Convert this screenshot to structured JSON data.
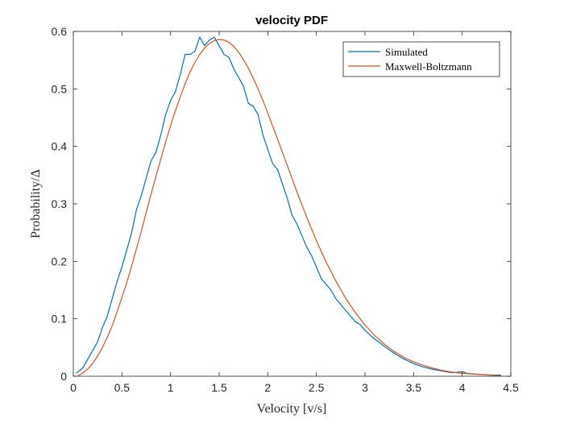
{
  "chart_data": {
    "type": "line",
    "title": "velocity PDF",
    "xlabel": "Velocity [v/s]",
    "ylabel": "Probability/Δ",
    "xlim": [
      0,
      4.5
    ],
    "ylim": [
      0,
      0.6
    ],
    "xticks": [
      0,
      0.5,
      1,
      1.5,
      2,
      2.5,
      3,
      3.5,
      4,
      4.5
    ],
    "xtick_labels": [
      "0",
      "0.5",
      "1",
      "1.5",
      "2",
      "2.5",
      "3",
      "3.5",
      "4",
      "4.5"
    ],
    "yticks": [
      0,
      0.1,
      0.2,
      0.3,
      0.4,
      0.5,
      0.6
    ],
    "ytick_labels": [
      "0",
      "0.1",
      "0.2",
      "0.3",
      "0.4",
      "0.5",
      "0.6"
    ],
    "grid": false,
    "legend_position": "top-right",
    "series": [
      {
        "name": "Simulated",
        "color": "#0072BD",
        "x": [
          0.03,
          0.1,
          0.15,
          0.2,
          0.25,
          0.3,
          0.35,
          0.4,
          0.45,
          0.5,
          0.55,
          0.6,
          0.65,
          0.7,
          0.75,
          0.8,
          0.85,
          0.9,
          0.95,
          1.0,
          1.05,
          1.1,
          1.15,
          1.2,
          1.25,
          1.3,
          1.35,
          1.4,
          1.45,
          1.5,
          1.55,
          1.6,
          1.65,
          1.7,
          1.75,
          1.8,
          1.85,
          1.9,
          1.95,
          2.0,
          2.05,
          2.1,
          2.15,
          2.2,
          2.25,
          2.3,
          2.35,
          2.4,
          2.45,
          2.5,
          2.55,
          2.6,
          2.65,
          2.7,
          2.75,
          2.8,
          2.85,
          2.9,
          2.95,
          3.0,
          3.05,
          3.1,
          3.2,
          3.3,
          3.4,
          3.5,
          3.6,
          3.7,
          3.8,
          3.9,
          4.0,
          4.05,
          4.1,
          4.2,
          4.3,
          4.4
        ],
        "y": [
          0.005,
          0.015,
          0.03,
          0.045,
          0.06,
          0.085,
          0.105,
          0.135,
          0.165,
          0.19,
          0.22,
          0.25,
          0.29,
          0.315,
          0.345,
          0.375,
          0.39,
          0.42,
          0.455,
          0.48,
          0.495,
          0.525,
          0.56,
          0.56,
          0.565,
          0.59,
          0.575,
          0.585,
          0.59,
          0.575,
          0.56,
          0.555,
          0.535,
          0.52,
          0.505,
          0.475,
          0.47,
          0.455,
          0.42,
          0.395,
          0.37,
          0.36,
          0.335,
          0.31,
          0.28,
          0.265,
          0.245,
          0.225,
          0.21,
          0.19,
          0.17,
          0.16,
          0.15,
          0.135,
          0.125,
          0.115,
          0.105,
          0.095,
          0.09,
          0.08,
          0.072,
          0.065,
          0.052,
          0.04,
          0.03,
          0.022,
          0.016,
          0.012,
          0.009,
          0.006,
          0.008,
          0.005,
          0.004,
          0.003,
          0.002,
          0.002
        ]
      },
      {
        "name": "Maxwell-Boltzmann",
        "color": "#D95319",
        "x": [
          0.05,
          0.1,
          0.15,
          0.2,
          0.25,
          0.3,
          0.35,
          0.4,
          0.45,
          0.5,
          0.55,
          0.6,
          0.65,
          0.7,
          0.75,
          0.8,
          0.85,
          0.9,
          0.95,
          1.0,
          1.05,
          1.1,
          1.15,
          1.2,
          1.25,
          1.3,
          1.35,
          1.4,
          1.45,
          1.5,
          1.55,
          1.6,
          1.65,
          1.7,
          1.75,
          1.8,
          1.85,
          1.9,
          1.95,
          2.0,
          2.1,
          2.2,
          2.3,
          2.4,
          2.5,
          2.6,
          2.7,
          2.8,
          2.9,
          3.0,
          3.1,
          3.2,
          3.3,
          3.4,
          3.5,
          3.6,
          3.7,
          3.8,
          3.9,
          4.0,
          4.1,
          4.2,
          4.3,
          4.4
        ],
        "y": [
          0.001,
          0.006,
          0.013,
          0.022,
          0.035,
          0.05,
          0.068,
          0.088,
          0.112,
          0.137,
          0.163,
          0.192,
          0.222,
          0.253,
          0.285,
          0.317,
          0.348,
          0.378,
          0.408,
          0.436,
          0.462,
          0.486,
          0.509,
          0.529,
          0.546,
          0.56,
          0.571,
          0.579,
          0.584,
          0.586,
          0.585,
          0.581,
          0.574,
          0.564,
          0.551,
          0.536,
          0.519,
          0.5,
          0.48,
          0.458,
          0.413,
          0.367,
          0.321,
          0.277,
          0.236,
          0.199,
          0.166,
          0.136,
          0.111,
          0.089,
          0.071,
          0.056,
          0.043,
          0.033,
          0.025,
          0.019,
          0.014,
          0.01,
          0.007,
          0.005,
          0.004,
          0.003,
          0.002,
          0.001
        ]
      }
    ]
  }
}
